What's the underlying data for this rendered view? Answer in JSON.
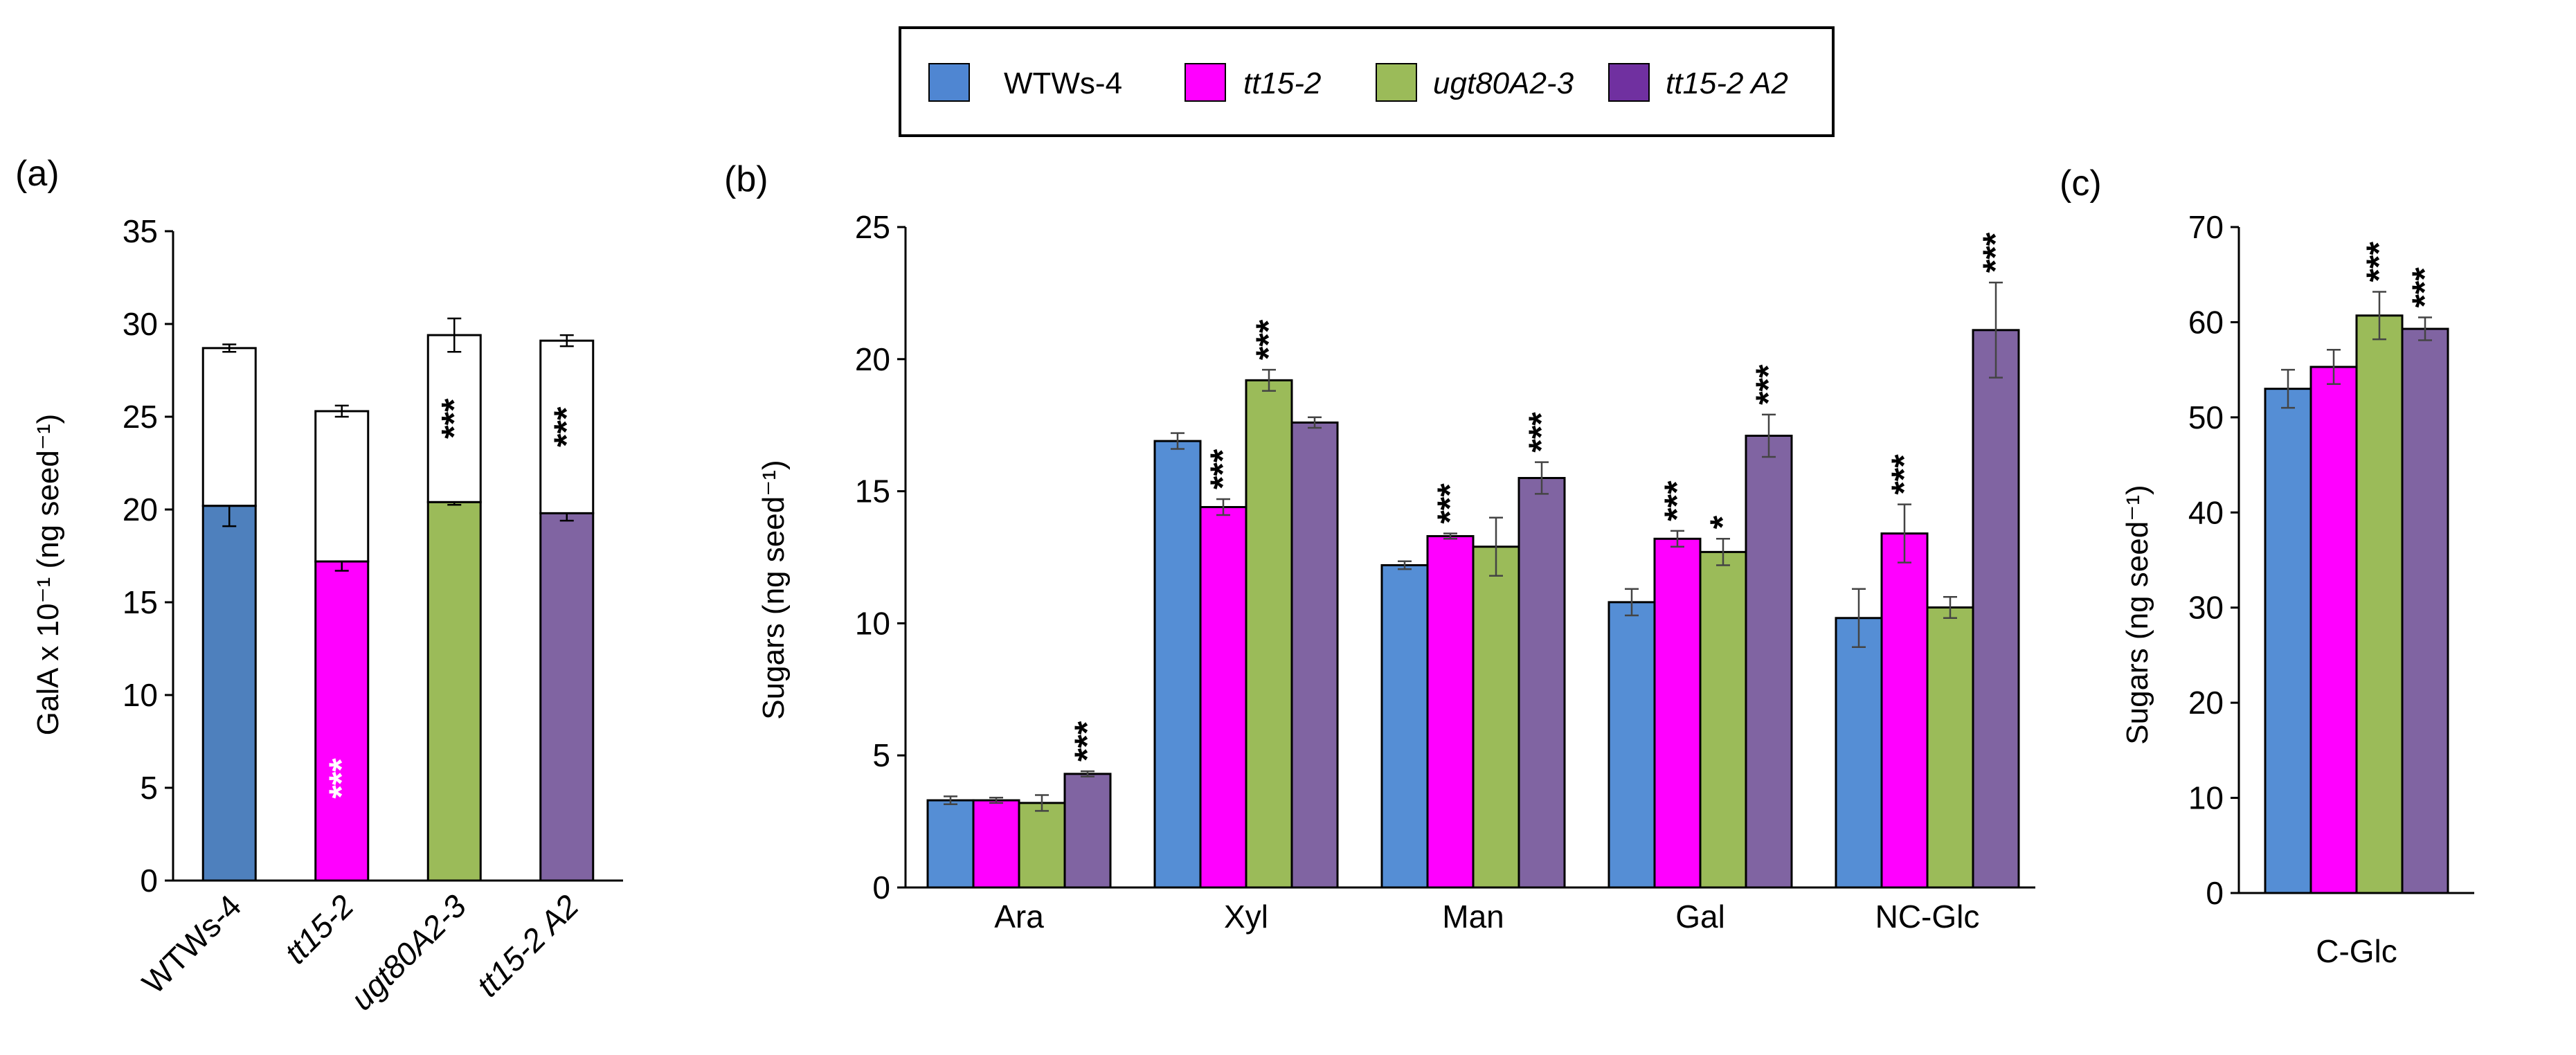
{
  "legend": {
    "items": [
      {
        "label": "WTWs-4",
        "color": "#4f86d2",
        "italic": false
      },
      {
        "label": "tt15-2",
        "color": "#ff00ff",
        "italic": true
      },
      {
        "label": "ugt80A2-3",
        "color": "#9bbb59",
        "italic": true
      },
      {
        "label": "tt15-2 A2",
        "color": "#7030a0",
        "italic": true
      }
    ]
  },
  "chart_data": [
    {
      "panel": "(a)",
      "type": "bar",
      "stacked": true,
      "ylabel": "GalA x 10⁻¹ (ng seed⁻¹)",
      "ylim": [
        0,
        35
      ],
      "yticks": [
        0,
        5,
        10,
        15,
        20,
        25,
        30,
        35
      ],
      "categories": [
        "WTWs-4",
        "tt15-2",
        "ugt80A2-3",
        "tt15-2 A2"
      ],
      "categories_italic": [
        false,
        true,
        true,
        true
      ],
      "series": [
        {
          "values": [
            20.2,
            17.2,
            20.4,
            19.8
          ],
          "errors": [
            1.1,
            0.5,
            0.15,
            0.4
          ],
          "colors": [
            "#4e80bd",
            "#ff00ff",
            "#9bbb59",
            "#8064a2"
          ],
          "significance": [
            "",
            "***",
            "",
            ""
          ]
        },
        {
          "values": [
            8.5,
            8.1,
            9.0,
            9.3
          ],
          "errors": [
            0.2,
            0.3,
            0.9,
            0.3
          ],
          "colors": [
            "#ffffff",
            "#ffffff",
            "#ffffff",
            "#ffffff"
          ],
          "significance": [
            "",
            "",
            "***",
            "***"
          ]
        }
      ],
      "grid": false
    },
    {
      "panel": "(b)",
      "type": "bar",
      "ylabel": "Sugars (ng seed⁻¹)",
      "ylim": [
        0,
        25
      ],
      "yticks": [
        0,
        5,
        10,
        15,
        20,
        25
      ],
      "categories": [
        "Ara",
        "Xyl",
        "Man",
        "Gal",
        "NC-Glc"
      ],
      "series": [
        {
          "values": [
            3.3,
            16.9,
            12.2,
            10.8,
            10.2
          ],
          "errors": [
            0.15,
            0.3,
            0.15,
            0.5,
            1.1
          ],
          "color": "#558ed5",
          "significance": [
            "",
            "",
            "",
            "",
            ""
          ]
        },
        {
          "values": [
            3.3,
            14.4,
            13.3,
            13.2,
            13.4
          ],
          "errors": [
            0.1,
            0.3,
            0.1,
            0.3,
            1.1
          ],
          "color": "#ff00ff",
          "significance": [
            "",
            "***",
            "***",
            "***",
            "***"
          ]
        },
        {
          "values": [
            3.2,
            19.2,
            12.9,
            12.7,
            10.6
          ],
          "errors": [
            0.3,
            0.4,
            1.1,
            0.5,
            0.4
          ],
          "color": "#9bbb59",
          "significance": [
            "",
            "***",
            "",
            "*",
            ""
          ]
        },
        {
          "values": [
            4.3,
            17.6,
            15.5,
            17.1,
            21.1
          ],
          "errors": [
            0.1,
            0.2,
            0.6,
            0.8,
            1.8
          ],
          "color": "#8064a2",
          "significance": [
            "***",
            "",
            "***",
            "***",
            "***"
          ]
        }
      ],
      "grid": false
    },
    {
      "panel": "(c)",
      "type": "bar",
      "ylabel": "Sugars (ng seed⁻¹)",
      "ylim": [
        0,
        70
      ],
      "yticks": [
        0,
        10,
        20,
        30,
        40,
        50,
        60,
        70
      ],
      "categories": [
        "C-Glc"
      ],
      "series": [
        {
          "values": [
            53.0
          ],
          "errors": [
            2.0
          ],
          "color": "#558ed5",
          "significance": [
            ""
          ]
        },
        {
          "values": [
            55.3
          ],
          "errors": [
            1.8
          ],
          "color": "#ff00ff",
          "significance": [
            ""
          ]
        },
        {
          "values": [
            60.7
          ],
          "errors": [
            2.5
          ],
          "color": "#9bbb59",
          "significance": [
            "***"
          ]
        },
        {
          "values": [
            59.3
          ],
          "errors": [
            1.2
          ],
          "color": "#8064a2",
          "significance": [
            "***"
          ]
        }
      ],
      "grid": false
    }
  ]
}
